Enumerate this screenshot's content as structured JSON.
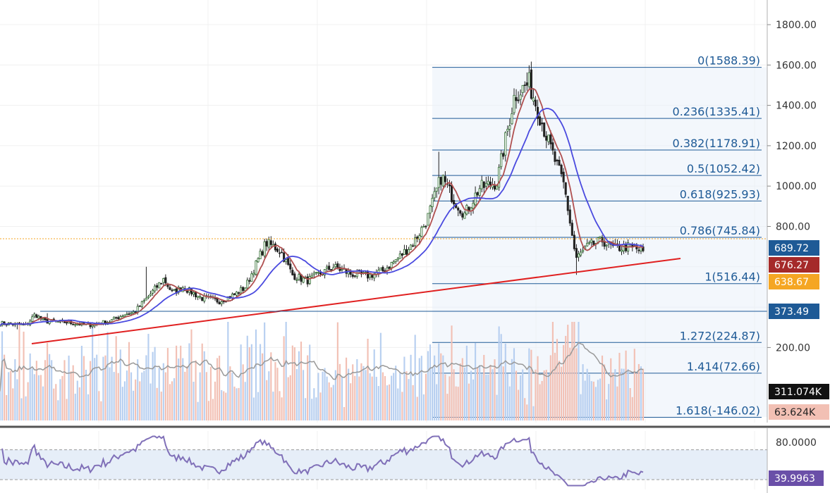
{
  "colors": {
    "up_candle": "#ffffff",
    "down_candle": "#222222",
    "fast_ma": "#b05050",
    "slow_ma": "#4a4adf",
    "trendline": "#e02020",
    "fib_line": "#1e5a96",
    "current_price": "#f5a623",
    "volume_up": "#b7cff0",
    "volume_down": "#f2c0b4",
    "volume_ma": "#999999",
    "rsi_line": "#8070b8",
    "rsi_band": "#e6eef8"
  },
  "chart_data": [
    {
      "type": "candlestick",
      "price_axis_ticks": [
        "1800.00",
        "1600.00",
        "1400.00",
        "1200.00",
        "1000.00",
        "800.00",
        "200.00"
      ],
      "ylim": [
        -180,
        1900
      ],
      "fibonacci_levels": [
        {
          "label": "0(1588.39)",
          "value": 1588.39
        },
        {
          "label": "0.236(1335.41)",
          "value": 1335.41
        },
        {
          "label": "0.382(1178.91)",
          "value": 1178.91
        },
        {
          "label": "0.5(1052.42)",
          "value": 1052.42
        },
        {
          "label": "0.618(925.93)",
          "value": 925.93
        },
        {
          "label": "0.786(745.84)",
          "value": 745.84
        },
        {
          "label": "1(516.44)",
          "value": 516.44
        },
        {
          "label": "1.272(224.87)",
          "value": 224.87
        },
        {
          "label": "1.414(72.66)",
          "value": 72.66
        },
        {
          "label": "1.618(-146.02)",
          "value": -146.02
        }
      ],
      "horizontal_level": 373.49,
      "price_badges": [
        {
          "label": "689.72",
          "value": 689.72,
          "color": "#1e5a96"
        },
        {
          "label": "676.27",
          "value": 676.27,
          "color": "#a52a2a"
        },
        {
          "label": "638.67",
          "value": 638.67,
          "color": "#f5a623"
        },
        {
          "label": "373.49",
          "value": 373.49,
          "color": "#1e5a96"
        }
      ],
      "trendline": {
        "start": {
          "bar": 12,
          "value": 290
        },
        "end": {
          "bar": 290,
          "value": 678
        }
      },
      "current_price": 676.27,
      "bars_count": 300,
      "anchor_closes": [
        [
          0,
          320
        ],
        [
          18,
          310
        ],
        [
          24,
          365
        ],
        [
          30,
          330
        ],
        [
          45,
          325
        ],
        [
          60,
          310
        ],
        [
          75,
          330
        ],
        [
          85,
          365
        ],
        [
          92,
          375
        ],
        [
          100,
          440
        ],
        [
          112,
          540
        ],
        [
          118,
          470
        ],
        [
          125,
          500
        ],
        [
          138,
          445
        ],
        [
          150,
          430
        ],
        [
          160,
          460
        ],
        [
          168,
          500
        ],
        [
          182,
          720
        ],
        [
          192,
          680
        ],
        [
          200,
          560
        ],
        [
          210,
          530
        ],
        [
          220,
          570
        ],
        [
          228,
          600
        ],
        [
          240,
          565
        ],
        [
          252,
          555
        ],
        [
          262,
          580
        ],
        [
          272,
          640
        ],
        [
          283,
          720
        ],
        [
          292,
          830
        ],
        [
          302,
          1050
        ],
        [
          310,
          940
        ],
        [
          318,
          860
        ],
        [
          328,
          990
        ],
        [
          340,
          1020
        ],
        [
          352,
          1450
        ],
        [
          362,
          1510
        ],
        [
          368,
          1380
        ],
        [
          376,
          1200
        ],
        [
          386,
          1000
        ],
        [
          394,
          640
        ],
        [
          402,
          700
        ],
        [
          412,
          730
        ],
        [
          420,
          690
        ],
        [
          430,
          700
        ],
        [
          440,
          676
        ]
      ],
      "high_points": [
        [
          32,
          370
        ],
        [
          100,
          600
        ],
        [
          183,
          740
        ],
        [
          300,
          1170
        ],
        [
          364,
          1590
        ]
      ],
      "low_points": [
        [
          12,
          290
        ],
        [
          394,
          560
        ]
      ]
    },
    {
      "type": "bar",
      "name_short": "volume",
      "last_values": [
        "311.074K",
        "63.624K"
      ]
    },
    {
      "type": "line",
      "name_short": "rsi",
      "ticks": [
        "80.0000"
      ],
      "ylim": [
        20,
        90
      ],
      "current_value": "39.9963",
      "current": 39.9963,
      "band_upper": 70,
      "band_lower": 30
    }
  ]
}
